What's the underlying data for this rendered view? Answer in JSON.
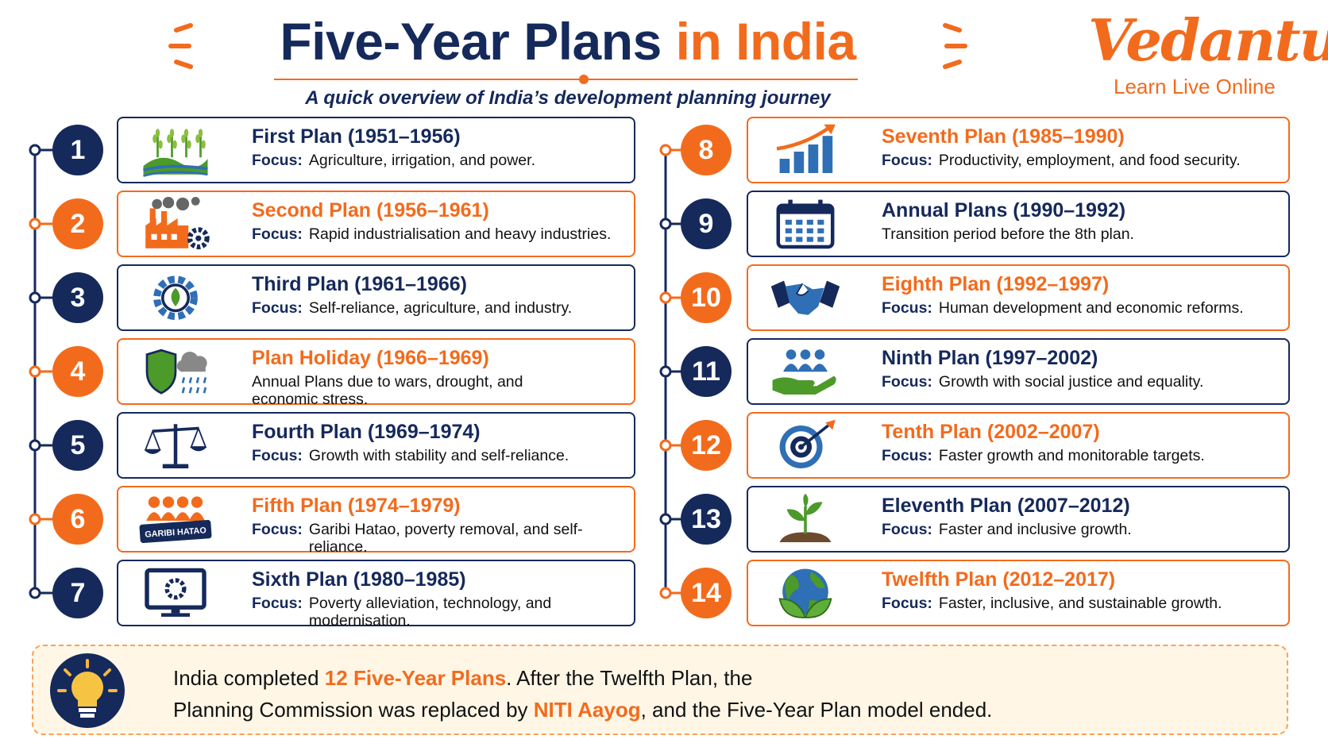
{
  "header": {
    "title": {
      "main": "Five-Year Plans",
      "accent": "in India"
    },
    "subtitle": "A quick overview of India’s development planning journey"
  },
  "logo": {
    "name": "Vedantu",
    "tagline": "Learn Live Online"
  },
  "plans": [
    {
      "number": 1,
      "title": "First Plan (1951–1956)",
      "focus_label": "Focus:",
      "focus": "Agriculture, irrigation, and power."
    },
    {
      "number": 2,
      "title": "Second Plan (1956–1961)",
      "focus_label": "Focus:",
      "focus": "Rapid industrialisation and heavy industries."
    },
    {
      "number": 3,
      "title": "Third Plan (1961–1966)",
      "focus_label": "Focus:",
      "focus": "Self-reliance, agriculture, and industry."
    },
    {
      "number": 4,
      "title": "Plan Holiday (1966–1969)",
      "focus": "Annual Plans due to wars, drought, and economic stress."
    },
    {
      "number": 5,
      "title": "Fourth Plan (1969–1974)",
      "focus_label": "Focus:",
      "focus": "Growth with stability and self-reliance."
    },
    {
      "number": 6,
      "title": "Fifth Plan (1974–1979)",
      "focus_label": "Focus:",
      "focus": "Garibi Hatao, poverty removal, and self-reliance.",
      "icon_text": "GARIBI HATAO"
    },
    {
      "number": 7,
      "title": "Sixth Plan (1980–1985)",
      "focus_label": "Focus:",
      "focus": "Poverty alleviation, technology, and modernisation."
    },
    {
      "number": 8,
      "title": "Seventh Plan (1985–1990)",
      "focus_label": "Focus:",
      "focus": "Productivity, employment, and food security."
    },
    {
      "number": 9,
      "title": "Annual Plans (1990–1992)",
      "focus": "Transition period before the 8th plan."
    },
    {
      "number": 10,
      "title": "Eighth Plan (1992–1997)",
      "focus_label": "Focus:",
      "focus": "Human development and economic reforms."
    },
    {
      "number": 11,
      "title": "Ninth Plan (1997–2002)",
      "focus_label": "Focus:",
      "focus": "Growth with social justice and equality."
    },
    {
      "number": 12,
      "title": "Tenth Plan (2002–2007)",
      "focus_label": "Focus:",
      "focus": "Faster growth and monitorable targets."
    },
    {
      "number": 13,
      "title": "Eleventh Plan (2007–2012)",
      "focus_label": "Focus:",
      "focus": "Faster and inclusive growth."
    },
    {
      "number": 14,
      "title": "Twelfth Plan (2012–2017)",
      "focus_label": "Focus:",
      "focus": "Faster, inclusive, and sustainable growth."
    }
  ],
  "footer": {
    "lines": [
      [
        {
          "text": "India completed "
        },
        {
          "text": "12 Five-Year Plans",
          "emphasis": true
        },
        {
          "text": ". After the Twelfth Plan, the"
        }
      ],
      [
        {
          "text": "Planning Commission was replaced by "
        },
        {
          "text": "NITI Aayog",
          "emphasis": true
        },
        {
          "text": ", and the Five-Year Plan model ended."
        }
      ]
    ]
  }
}
